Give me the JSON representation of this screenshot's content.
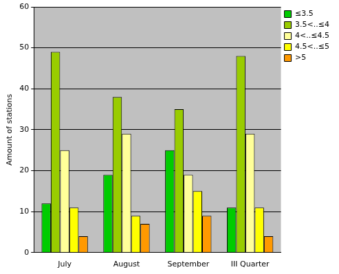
{
  "chart_data": {
    "type": "bar",
    "y_label": "Amount of stations",
    "categories": [
      "July",
      "August",
      "September",
      "III Quarter"
    ],
    "series": [
      {
        "name": "≤3.5",
        "color": "#00cc00",
        "values": [
          12,
          19,
          25,
          11
        ]
      },
      {
        "name": "3.5<..≤4",
        "color": "#99cc00",
        "values": [
          49,
          38,
          35,
          48
        ]
      },
      {
        "name": "4<..≤4.5",
        "color": "#ffff99",
        "values": [
          25,
          29,
          19,
          29
        ]
      },
      {
        "name": "4.5<..≤5",
        "color": "#ffff00",
        "values": [
          11,
          9,
          15,
          11
        ]
      },
      {
        "name": ">5",
        "color": "#ff9900",
        "values": [
          4,
          7,
          9,
          4
        ]
      }
    ],
    "ylim": [
      0,
      60
    ],
    "yticks": [
      0,
      10,
      20,
      30,
      40,
      50,
      60
    ],
    "grid": true,
    "legend": "upper right"
  }
}
